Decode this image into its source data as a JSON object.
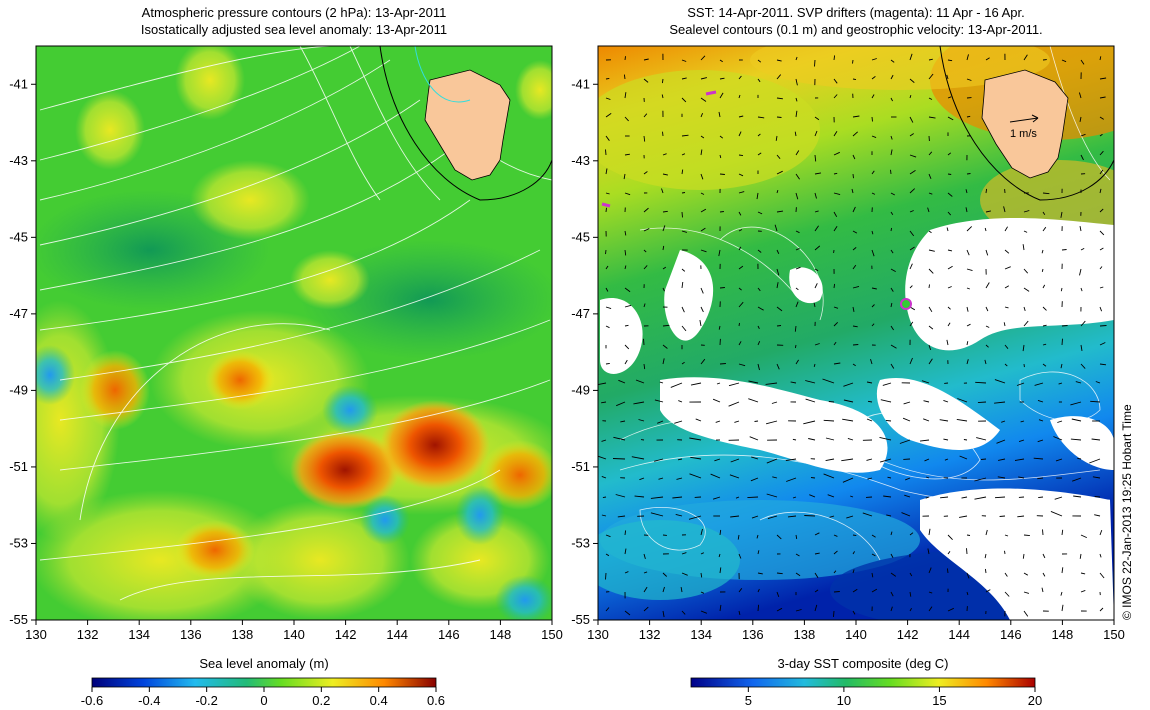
{
  "left_panel": {
    "title_line1": "Atmospheric pressure contours (2 hPa): 13-Apr-2011",
    "title_line2": "Isostatically adjusted sea level anomaly: 13-Apr-2011",
    "colorbar_label": "Sea level anomaly (m)",
    "colorbar_ticks": [
      "-0.6",
      "-0.4",
      "-0.2",
      "0",
      "0.2",
      "0.4",
      "0.6"
    ],
    "colorbar_range": [
      -0.6,
      0.6
    ]
  },
  "right_panel": {
    "title_line1": "SST: 14-Apr-2011. SVP drifters (magenta): 11 Apr - 16 Apr.",
    "title_line2": "Sealevel contours (0.1 m) and geostrophic velocity: 13-Apr-2011.",
    "velocity_scale_label": "1 m/s",
    "colorbar_label": "3-day SST composite (deg C)",
    "colorbar_ticks": [
      "5",
      "10",
      "15",
      "20"
    ],
    "colorbar_range": [
      2,
      20
    ]
  },
  "axes": {
    "lon_range": [
      130,
      150
    ],
    "lat_range": [
      -55,
      -40
    ],
    "lon_ticks": [
      "130",
      "132",
      "134",
      "136",
      "138",
      "140",
      "142",
      "144",
      "146",
      "148",
      "150"
    ],
    "lat_ticks": [
      "-41",
      "-43",
      "-45",
      "-47",
      "-49",
      "-51",
      "-53",
      "-55"
    ]
  },
  "credit": "© IMOS 22-Jan-2013 19:25 Hobart Time",
  "colors": {
    "land": "#f9c79a",
    "ocean_mid": "#33cc33",
    "drifter": "#cc33cc",
    "contour": "#ffffff"
  }
}
